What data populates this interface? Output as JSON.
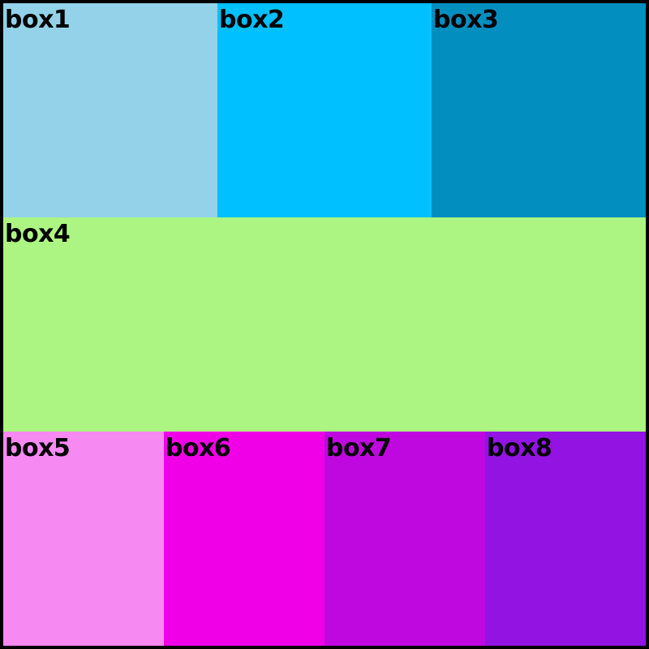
{
  "boxes": [
    {
      "label": "box1",
      "color": "#93d2e8"
    },
    {
      "label": "box2",
      "color": "#00c0ff"
    },
    {
      "label": "box3",
      "color": "#028fc0"
    },
    {
      "label": "box4",
      "color": "#adf582"
    },
    {
      "label": "box5",
      "color": "#f789f3"
    },
    {
      "label": "box6",
      "color": "#f000e6"
    },
    {
      "label": "box7",
      "color": "#bf08e0"
    },
    {
      "label": "box8",
      "color": "#9313e3"
    }
  ],
  "frame": {
    "border_color": "#000000"
  }
}
